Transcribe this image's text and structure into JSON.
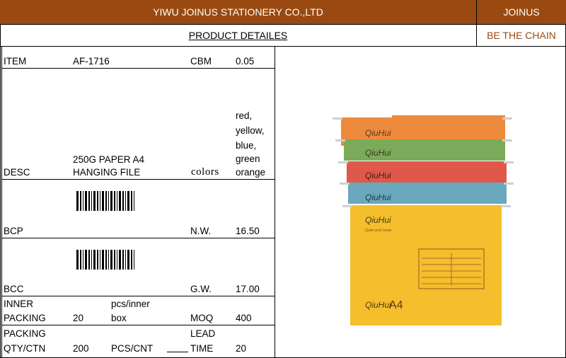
{
  "header": {
    "company": "YIWU JOINUS STATIONERY CO.,LTD",
    "brand": "JOINUS",
    "section_title": "PRODUCT DETAILES",
    "slogan": "BE THE CHAIN"
  },
  "specs": {
    "item_label": "ITEM",
    "item_value": "AF-1716",
    "cbm_label": "CBM",
    "cbm_value": "0.05",
    "desc_label": "DESC",
    "desc_line1": "250G PAPER A4",
    "desc_line2": "HANGING FILE",
    "colors_label": "colors",
    "colors": [
      "red,",
      "yellow,",
      "blue,",
      "green",
      "orange"
    ],
    "bcp_label": "BCP",
    "nw_label": "N.W.",
    "nw_value": "16.50",
    "bcc_label": "BCC",
    "gw_label": "G.W.",
    "gw_value": "17.00",
    "inner_label_1": "INNER",
    "inner_label_2": "PACKING",
    "inner_value": "20",
    "inner_unit_1": "pcs/inner",
    "inner_unit_2": "box",
    "moq_label": "MOQ",
    "moq_value": "400",
    "packing_label_1": "PACKING",
    "packing_label_2": "QTY/CTN",
    "packing_value": "200",
    "packing_unit": "PCS/CNT",
    "lead_label_1": "LEAD",
    "lead_label_2": "TIME",
    "lead_value": "20"
  },
  "product_image": {
    "folder_colors": [
      "#ee8a3c",
      "#7bab5a",
      "#e0584a",
      "#6aa8bd",
      "#f4be2c"
    ],
    "brand_mark": "QiuHui",
    "tagline": "Quiet work leads",
    "size_label": "A4"
  },
  "colors": {
    "header_bg": "#9a4a10",
    "slogan_text": "#9a4a10"
  }
}
